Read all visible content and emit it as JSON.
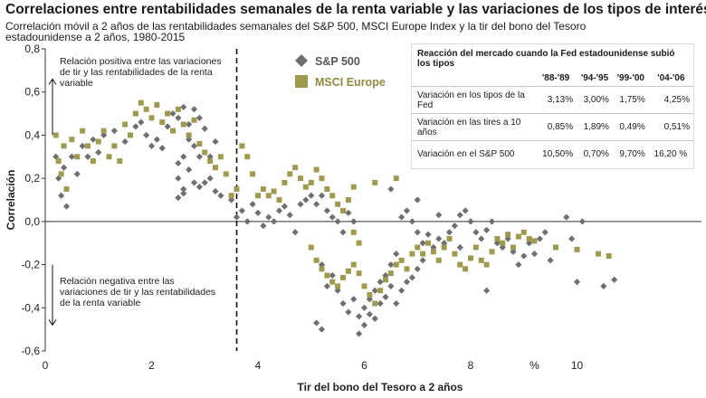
{
  "header": {
    "title": "Correlaciones entre rentabilidades semanales de la renta variable y las variaciones de los tipos de interés",
    "subtitle": "Correlación móvil a 2 años de las rentabilidades semanales del S&P 500, MSCI Europe Index y la tir del bono del Tesoro estadounidense a 2 años, 1980-2015"
  },
  "annotations": {
    "positive": "Relación positiva entre las variaciones de tir y las rentabilidades de la renta variable",
    "negative": "Relación negativa entre las variaciones de tir y las rentabilidades de la renta variable"
  },
  "fed_table": {
    "title": "Reacción del mercado cuando la Fed estadounidense subió los tipos",
    "columns": [
      "'88-'89",
      "'94-'95",
      "'99-'00",
      "'04-'06"
    ],
    "rows": [
      {
        "label": "Variación en los tipos de la Fed",
        "values": [
          "3,13%",
          "3,00%",
          "1,75%",
          "4,25%"
        ]
      },
      {
        "label": "Variación en las tires a 10 años",
        "values": [
          "0,85%",
          "1,89%",
          "0,49%",
          "0,51%"
        ]
      },
      {
        "label": "Variación en el S&P 500",
        "values": [
          "10,50%",
          "0,70%",
          "9,70%",
          "16,20 %"
        ]
      }
    ]
  },
  "chart_data": {
    "type": "scatter",
    "xlabel": "Tir del bono del Tesoro a 2 años",
    "ylabel": "Correlación",
    "x_unit_label": "%",
    "xlim": [
      0,
      11.2
    ],
    "ylim": [
      -0.6,
      0.8
    ],
    "x_ticks": [
      0,
      2,
      4,
      6,
      8,
      10
    ],
    "x_tick_labels": [
      "0",
      "2",
      "4",
      "6",
      "8",
      "10"
    ],
    "y_ticks": [
      -0.6,
      -0.4,
      -0.2,
      0.0,
      0.2,
      0.4,
      0.6,
      0.8
    ],
    "y_tick_labels": [
      "-0,6",
      "-0,4",
      "-0,2",
      "0,0",
      "0,2",
      "0,4",
      "0,6",
      "0,8"
    ],
    "reference_line_x": 3.6,
    "grid": false,
    "legend_position": "top-center",
    "series": [
      {
        "name": "S&P 500",
        "marker": "diamond",
        "color": "#6f6f6f",
        "points": [
          [
            0.2,
            0.3
          ],
          [
            0.25,
            0.2
          ],
          [
            0.3,
            0.12
          ],
          [
            0.35,
            0.25
          ],
          [
            0.4,
            0.07
          ],
          [
            0.5,
            0.3
          ],
          [
            0.6,
            0.22
          ],
          [
            0.7,
            0.35
          ],
          [
            0.8,
            0.3
          ],
          [
            0.9,
            0.38
          ],
          [
            1.0,
            0.32
          ],
          [
            1.1,
            0.4
          ],
          [
            1.3,
            0.42
          ],
          [
            1.5,
            0.37
          ],
          [
            1.7,
            0.44
          ],
          [
            1.8,
            0.46
          ],
          [
            1.9,
            0.4
          ],
          [
            2.0,
            0.35
          ],
          [
            2.1,
            0.38
          ],
          [
            2.2,
            0.34
          ],
          [
            2.3,
            0.44
          ],
          [
            2.4,
            0.5
          ],
          [
            2.5,
            0.48
          ],
          [
            2.6,
            0.53
          ],
          [
            2.7,
            0.45
          ],
          [
            2.8,
            0.52
          ],
          [
            2.9,
            0.48
          ],
          [
            3.0,
            0.43
          ],
          [
            3.1,
            0.3
          ],
          [
            3.2,
            0.37
          ],
          [
            2.5,
            0.2
          ],
          [
            2.6,
            0.15
          ],
          [
            2.7,
            0.24
          ],
          [
            2.8,
            0.18
          ],
          [
            2.9,
            0.16
          ],
          [
            3.0,
            0.18
          ],
          [
            3.1,
            0.2
          ],
          [
            3.2,
            0.14
          ],
          [
            2.6,
            0.13
          ],
          [
            2.5,
            0.11
          ],
          [
            2.5,
            0.27
          ],
          [
            2.6,
            0.3
          ],
          [
            2.7,
            0.38
          ],
          [
            2.8,
            0.35
          ],
          [
            2.9,
            0.3
          ],
          [
            3.3,
            0.12
          ],
          [
            3.5,
            0.1
          ],
          [
            3.6,
            0.02
          ],
          [
            3.7,
            0.05
          ],
          [
            3.8,
            0.0
          ],
          [
            3.9,
            0.08
          ],
          [
            4.0,
            0.04
          ],
          [
            4.1,
            -0.02
          ],
          [
            4.2,
            0.02
          ],
          [
            4.3,
            0.0
          ],
          [
            4.4,
            0.05
          ],
          [
            4.5,
            0.07
          ],
          [
            4.6,
            0.03
          ],
          [
            4.7,
            -0.05
          ],
          [
            4.8,
            0.08
          ],
          [
            4.9,
            0.1
          ],
          [
            5.0,
            0.12
          ],
          [
            5.1,
            0.08
          ],
          [
            5.2,
            0.12
          ],
          [
            5.3,
            0.05
          ],
          [
            5.4,
            0.02
          ],
          [
            5.5,
            0.0
          ],
          [
            5.6,
            -0.05
          ],
          [
            5.7,
            0.04
          ],
          [
            5.8,
            0.0
          ],
          [
            5.2,
            -0.2
          ],
          [
            5.3,
            -0.3
          ],
          [
            5.4,
            -0.25
          ],
          [
            5.5,
            -0.32
          ],
          [
            5.6,
            -0.38
          ],
          [
            5.7,
            -0.42
          ],
          [
            5.8,
            -0.36
          ],
          [
            5.9,
            -0.44
          ],
          [
            6.0,
            -0.48
          ],
          [
            6.1,
            -0.43
          ],
          [
            6.2,
            -0.45
          ],
          [
            6.3,
            -0.38
          ],
          [
            6.4,
            -0.35
          ],
          [
            6.5,
            -0.3
          ],
          [
            6.6,
            -0.38
          ],
          [
            6.7,
            -0.32
          ],
          [
            6.8,
            -0.28
          ],
          [
            6.9,
            -0.26
          ],
          [
            7.0,
            -0.22
          ],
          [
            7.1,
            -0.18
          ],
          [
            5.1,
            -0.47
          ],
          [
            5.2,
            -0.5
          ],
          [
            5.9,
            -0.52
          ],
          [
            6.0,
            -0.4
          ],
          [
            6.1,
            -0.36
          ],
          [
            6.2,
            -0.32
          ],
          [
            6.3,
            -0.28
          ],
          [
            6.4,
            -0.25
          ],
          [
            6.5,
            -0.2
          ],
          [
            6.6,
            -0.15
          ],
          [
            6.7,
            0.02
          ],
          [
            6.8,
            0.05
          ],
          [
            6.9,
            0.0
          ],
          [
            7.0,
            -0.05
          ],
          [
            7.1,
            -0.1
          ],
          [
            7.2,
            -0.06
          ],
          [
            7.3,
            -0.12
          ],
          [
            7.4,
            -0.08
          ],
          [
            7.5,
            -0.1
          ],
          [
            7.6,
            -0.05
          ],
          [
            7.7,
            -0.02
          ],
          [
            7.8,
            0.03
          ],
          [
            7.9,
            0.05
          ],
          [
            8.0,
            0.0
          ],
          [
            8.1,
            -0.05
          ],
          [
            8.2,
            -0.08
          ],
          [
            8.3,
            -0.04
          ],
          [
            8.4,
            0.0
          ],
          [
            8.5,
            -0.1
          ],
          [
            8.6,
            -0.12
          ],
          [
            8.7,
            -0.08
          ],
          [
            8.8,
            -0.14
          ],
          [
            8.9,
            -0.2
          ],
          [
            9.0,
            -0.16
          ],
          [
            9.1,
            -0.1
          ],
          [
            9.2,
            -0.15
          ],
          [
            9.3,
            -0.08
          ],
          [
            9.4,
            -0.05
          ],
          [
            9.5,
            -0.18
          ],
          [
            9.8,
            0.02
          ],
          [
            10.1,
            0.0
          ],
          [
            10.5,
            -0.3
          ],
          [
            10.7,
            -0.27
          ],
          [
            10.0,
            -0.28
          ],
          [
            9.9,
            -0.08
          ],
          [
            8.3,
            -0.32
          ],
          [
            7.8,
            -0.12
          ],
          [
            7.4,
            0.03
          ],
          [
            7.0,
            0.1
          ],
          [
            6.5,
            0.15
          ]
        ]
      },
      {
        "name": "MSCI Europe",
        "marker": "square",
        "color": "#a09a4e",
        "points": [
          [
            0.2,
            0.4
          ],
          [
            0.25,
            0.28
          ],
          [
            0.3,
            0.22
          ],
          [
            0.35,
            0.35
          ],
          [
            0.4,
            0.15
          ],
          [
            0.5,
            0.38
          ],
          [
            0.6,
            0.3
          ],
          [
            0.7,
            0.42
          ],
          [
            0.8,
            0.35
          ],
          [
            0.9,
            0.28
          ],
          [
            1.0,
            0.37
          ],
          [
            1.1,
            0.42
          ],
          [
            1.2,
            0.3
          ],
          [
            1.3,
            0.35
          ],
          [
            1.4,
            0.28
          ],
          [
            1.5,
            0.45
          ],
          [
            1.6,
            0.4
          ],
          [
            1.7,
            0.5
          ],
          [
            1.8,
            0.55
          ],
          [
            1.9,
            0.52
          ],
          [
            2.0,
            0.48
          ],
          [
            2.1,
            0.54
          ],
          [
            2.2,
            0.46
          ],
          [
            2.3,
            0.5
          ],
          [
            2.4,
            0.42
          ],
          [
            2.5,
            0.52
          ],
          [
            2.6,
            0.45
          ],
          [
            2.7,
            0.4
          ],
          [
            2.8,
            0.47
          ],
          [
            2.9,
            0.36
          ],
          [
            3.0,
            0.32
          ],
          [
            3.1,
            0.28
          ],
          [
            3.2,
            0.25
          ],
          [
            3.3,
            0.3
          ],
          [
            3.4,
            0.22
          ],
          [
            3.5,
            0.12
          ],
          [
            3.6,
            0.15
          ],
          [
            3.7,
            0.35
          ],
          [
            3.8,
            0.3
          ],
          [
            3.9,
            0.22
          ],
          [
            4.0,
            0.12
          ],
          [
            4.1,
            0.15
          ],
          [
            4.2,
            0.12
          ],
          [
            4.3,
            0.14
          ],
          [
            4.4,
            0.1
          ],
          [
            4.5,
            0.18
          ],
          [
            4.6,
            0.22
          ],
          [
            4.7,
            0.25
          ],
          [
            4.8,
            0.2
          ],
          [
            4.9,
            0.16
          ],
          [
            5.0,
            0.18
          ],
          [
            5.1,
            0.24
          ],
          [
            5.2,
            0.2
          ],
          [
            5.3,
            0.15
          ],
          [
            5.4,
            0.12
          ],
          [
            5.5,
            0.08
          ],
          [
            5.6,
            0.05
          ],
          [
            5.7,
            0.1
          ],
          [
            5.8,
            -0.05
          ],
          [
            5.9,
            -0.1
          ],
          [
            5.0,
            -0.12
          ],
          [
            5.1,
            -0.18
          ],
          [
            5.2,
            -0.22
          ],
          [
            5.3,
            -0.25
          ],
          [
            5.4,
            -0.28
          ],
          [
            5.5,
            -0.3
          ],
          [
            5.6,
            -0.26
          ],
          [
            5.7,
            -0.23
          ],
          [
            5.8,
            -0.2
          ],
          [
            5.9,
            -0.24
          ],
          [
            6.0,
            -0.3
          ],
          [
            6.1,
            -0.34
          ],
          [
            6.2,
            -0.38
          ],
          [
            6.3,
            -0.32
          ],
          [
            6.4,
            -0.27
          ],
          [
            6.5,
            -0.24
          ],
          [
            6.6,
            -0.2
          ],
          [
            6.7,
            -0.18
          ],
          [
            6.8,
            -0.22
          ],
          [
            6.9,
            -0.15
          ],
          [
            7.0,
            -0.12
          ],
          [
            7.1,
            -0.15
          ],
          [
            7.2,
            -0.1
          ],
          [
            7.3,
            -0.14
          ],
          [
            7.4,
            -0.18
          ],
          [
            7.5,
            -0.12
          ],
          [
            7.6,
            -0.08
          ],
          [
            7.7,
            -0.15
          ],
          [
            7.8,
            -0.2
          ],
          [
            7.9,
            -0.22
          ],
          [
            8.0,
            -0.17
          ],
          [
            8.1,
            -0.12
          ],
          [
            8.2,
            -0.18
          ],
          [
            8.3,
            -0.2
          ],
          [
            8.4,
            -0.14
          ],
          [
            8.5,
            -0.08
          ],
          [
            8.6,
            -0.1
          ],
          [
            8.7,
            -0.06
          ],
          [
            8.8,
            -0.12
          ],
          [
            8.9,
            -0.07
          ],
          [
            9.0,
            -0.05
          ],
          [
            9.1,
            -0.08
          ],
          [
            9.2,
            -0.09
          ],
          [
            9.6,
            -0.12
          ],
          [
            10.0,
            -0.13
          ],
          [
            10.4,
            -0.15
          ],
          [
            10.6,
            -0.16
          ],
          [
            6.6,
            0.2
          ],
          [
            6.2,
            0.18
          ],
          [
            5.8,
            0.16
          ]
        ]
      }
    ]
  }
}
